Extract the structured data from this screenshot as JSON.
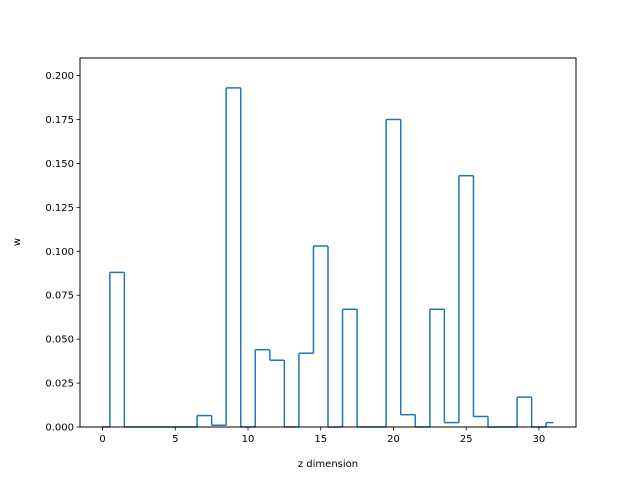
{
  "chart_data": {
    "type": "step",
    "title": "",
    "xlabel": "z dimension",
    "ylabel": "w",
    "xlim": [
      -1.55,
      32.55
    ],
    "ylim": [
      0.0,
      0.21
    ],
    "xticks": [
      0,
      5,
      10,
      15,
      20,
      25,
      30
    ],
    "xtick_labels": [
      "0",
      "5",
      "10",
      "15",
      "20",
      "25",
      "30"
    ],
    "yticks": [
      0.0,
      0.025,
      0.05,
      0.075,
      0.1,
      0.125,
      0.15,
      0.175,
      0.2
    ],
    "ytick_labels": [
      "0.000",
      "0.025",
      "0.050",
      "0.075",
      "0.100",
      "0.125",
      "0.150",
      "0.175",
      "0.200"
    ],
    "grid": false,
    "step_where": "mid",
    "color": "#1f77b4",
    "x": [
      0,
      1,
      2,
      3,
      4,
      5,
      6,
      7,
      8,
      9,
      10,
      11,
      12,
      13,
      14,
      15,
      16,
      17,
      18,
      19,
      20,
      21,
      22,
      23,
      24,
      25,
      26,
      27,
      28,
      29,
      30,
      31
    ],
    "values": [
      0.0,
      0.088,
      0.0,
      0.0,
      0.0,
      0.0,
      0.0,
      0.0065,
      0.001,
      0.193,
      0.0,
      0.044,
      0.038,
      0.0,
      0.042,
      0.103,
      0.0,
      0.067,
      0.0,
      0.0,
      0.175,
      0.007,
      0.0,
      0.067,
      0.0025,
      0.143,
      0.006,
      0.0,
      0.0,
      0.017,
      0.0,
      0.0025
    ]
  }
}
